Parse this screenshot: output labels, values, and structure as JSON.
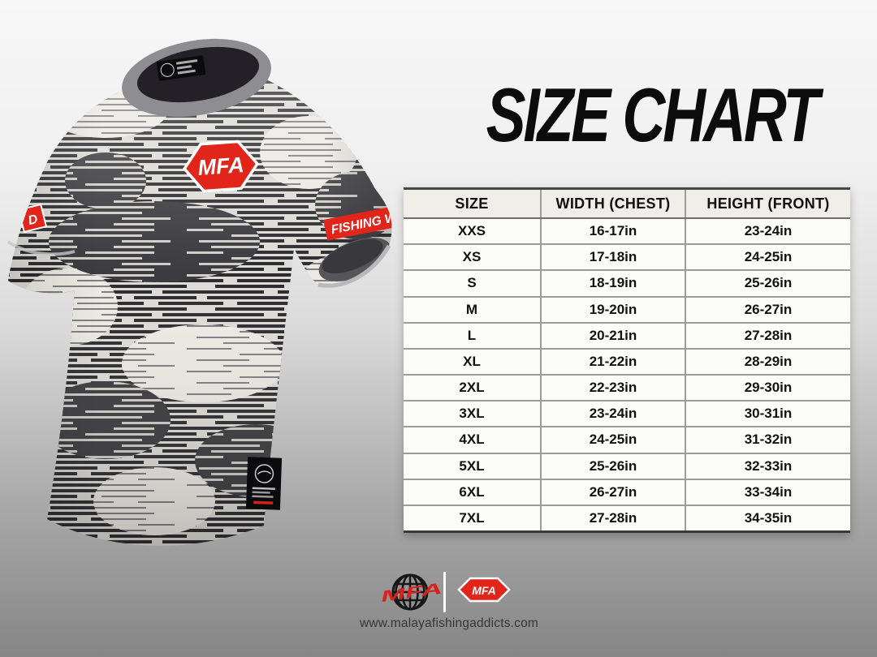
{
  "title": "SIZE CHART",
  "chart_data": {
    "type": "table",
    "title": "SIZE CHART",
    "columns": [
      "SIZE",
      "WIDTH (CHEST)",
      "HEIGHT (FRONT)"
    ],
    "rows": [
      [
        "XXS",
        "16-17in",
        "23-24in"
      ],
      [
        "XS",
        "17-18in",
        "24-25in"
      ],
      [
        "S",
        "18-19in",
        "25-26in"
      ],
      [
        "M",
        "19-20in",
        "26-27in"
      ],
      [
        "L",
        "20-21in",
        "27-28in"
      ],
      [
        "XL",
        "21-22in",
        "28-29in"
      ],
      [
        "2XL",
        "22-23in",
        "29-30in"
      ],
      [
        "3XL",
        "23-24in",
        "30-31in"
      ],
      [
        "4XL",
        "24-25in",
        "31-32in"
      ],
      [
        "5XL",
        "25-26in",
        "32-33in"
      ],
      [
        "6XL",
        "26-27in",
        "33-34in"
      ],
      [
        "7XL",
        "27-28in",
        "34-35in"
      ]
    ]
  },
  "shirt": {
    "chest_logo_text": "MFA",
    "sleeve_patch_text": "FISHING W",
    "left_sleeve_patch_text": "D"
  },
  "footer": {
    "globe_logo_text": "MFA",
    "hex_logo_text": "MFA",
    "website": "www.malayafishingaddicts.com"
  },
  "colors": {
    "brand_red": "#e1251b",
    "title_black": "#0c0c0c",
    "stripe_dark": "#2c2c30",
    "collar_gray": "#8e8e92"
  }
}
